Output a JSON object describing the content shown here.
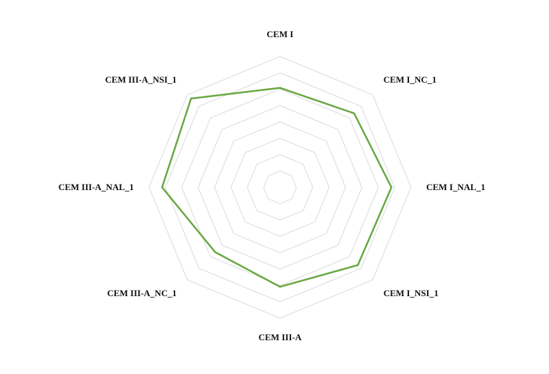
{
  "chart_data": {
    "type": "radar",
    "categories": [
      "CEM I",
      "CEM I_NC_1",
      "CEM I_NAL_1",
      "CEM I_NSI_1",
      "CEM III-A",
      "CEM III-A_NC_1",
      "CEM III-A_NAL_1",
      "CEM III-A_NSI_1"
    ],
    "series": [
      {
        "values": [
          7.6,
          8.0,
          8.5,
          8.4,
          7.6,
          7.0,
          9.0,
          9.6
        ],
        "color": "#6aa845"
      }
    ],
    "rlim": [
      0,
      10
    ],
    "ring_count": 8,
    "gridline_color": "#d9d9d9",
    "grid": true,
    "legend": "none"
  }
}
